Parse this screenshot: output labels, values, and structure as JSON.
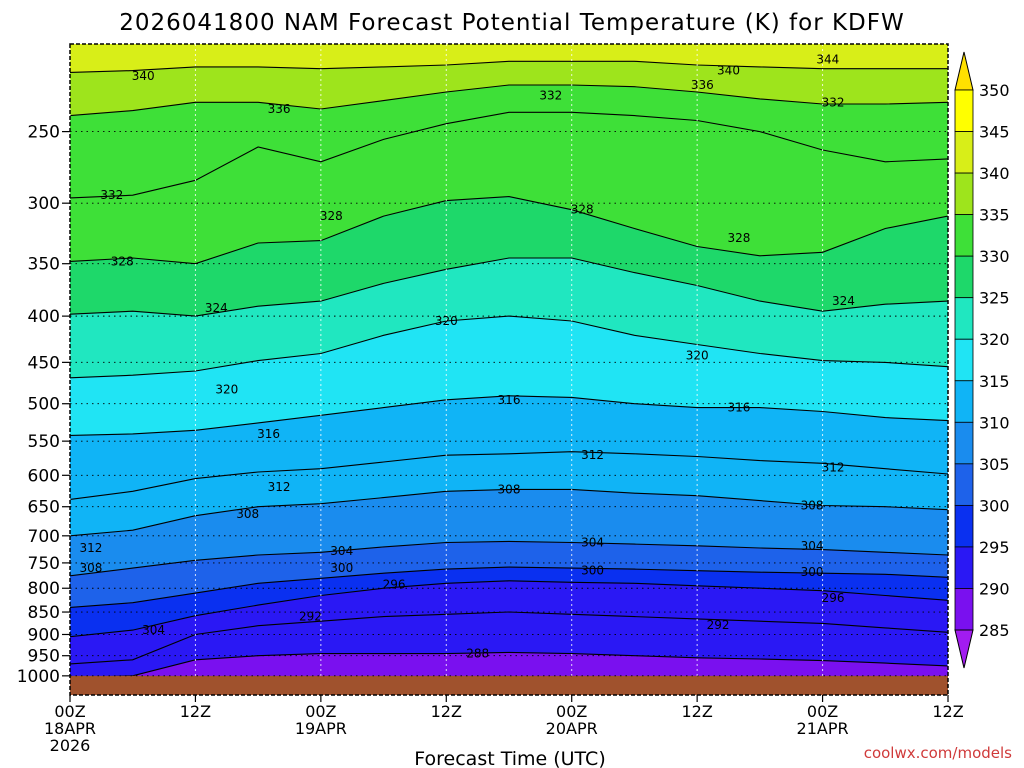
{
  "chart_data": {
    "type": "heatmap",
    "title": "2026041800 NAM Forecast Potential Temperature (K) for KDFW",
    "xlabel": "Forecast Time (UTC)",
    "ylabel": "",
    "credit": "coolwx.com/models",
    "y_axis": {
      "scale": "log",
      "inverted": true,
      "range": [
        1050,
        200
      ],
      "ticks": [
        250,
        300,
        350,
        400,
        450,
        500,
        550,
        600,
        650,
        700,
        750,
        800,
        850,
        900,
        950,
        1000
      ]
    },
    "x_axis": {
      "range_hours": [
        0,
        84
      ],
      "ticks": [
        {
          "h": 0,
          "lines": [
            "00Z",
            "18APR",
            "2026"
          ]
        },
        {
          "h": 12,
          "lines": [
            "12Z"
          ]
        },
        {
          "h": 24,
          "lines": [
            "00Z",
            "19APR"
          ]
        },
        {
          "h": 36,
          "lines": [
            "12Z"
          ]
        },
        {
          "h": 48,
          "lines": [
            "00Z",
            "20APR"
          ]
        },
        {
          "h": 60,
          "lines": [
            "12Z"
          ]
        },
        {
          "h": 72,
          "lines": [
            "00Z",
            "21APR"
          ]
        },
        {
          "h": 84,
          "lines": [
            "12Z"
          ]
        }
      ]
    },
    "colorbar": {
      "units": "K",
      "levels": [
        285,
        290,
        295,
        300,
        305,
        310,
        315,
        320,
        325,
        330,
        335,
        340,
        345,
        350
      ],
      "colors": [
        "#a21cf0",
        "#7a10ef",
        "#2a18f4",
        "#0a30f0",
        "#1e62ea",
        "#1a8cee",
        "#10b4f6",
        "#20e4f4",
        "#20e7c0",
        "#1ed86a",
        "#3ee038",
        "#9ee41c",
        "#d8ee18",
        "#ffff00",
        "#ffe000"
      ]
    },
    "grid": true,
    "surface_color": "#a0522d",
    "surface_pressure": 1000,
    "series": [
      {
        "theta": 340,
        "points": [
          [
            0,
            215
          ],
          [
            6,
            214
          ],
          [
            12,
            212
          ],
          [
            18,
            212
          ],
          [
            24,
            213
          ],
          [
            30,
            212
          ],
          [
            36,
            211
          ],
          [
            42,
            209
          ],
          [
            48,
            209
          ],
          [
            54,
            209
          ],
          [
            60,
            211
          ],
          [
            66,
            212
          ],
          [
            72,
            213
          ],
          [
            78,
            213
          ],
          [
            84,
            213
          ]
        ]
      },
      {
        "theta": 336,
        "points": [
          [
            0,
            240
          ],
          [
            6,
            237
          ],
          [
            12,
            232
          ],
          [
            18,
            232
          ],
          [
            24,
            236
          ],
          [
            30,
            231
          ],
          [
            36,
            226
          ],
          [
            42,
            222
          ],
          [
            48,
            222
          ],
          [
            54,
            223
          ],
          [
            60,
            226
          ],
          [
            66,
            230
          ],
          [
            72,
            233
          ],
          [
            78,
            233
          ],
          [
            84,
            232
          ]
        ]
      },
      {
        "theta": 332,
        "points": [
          [
            0,
            296
          ],
          [
            6,
            294
          ],
          [
            12,
            283
          ],
          [
            18,
            260
          ],
          [
            24,
            270
          ],
          [
            30,
            255
          ],
          [
            36,
            245
          ],
          [
            42,
            238
          ],
          [
            48,
            238
          ],
          [
            54,
            240
          ],
          [
            60,
            243
          ],
          [
            66,
            250
          ],
          [
            72,
            262
          ],
          [
            78,
            270
          ],
          [
            84,
            268
          ]
        ]
      },
      {
        "theta": 328,
        "points": [
          [
            0,
            348
          ],
          [
            6,
            345
          ],
          [
            12,
            350
          ],
          [
            18,
            332
          ],
          [
            24,
            330
          ],
          [
            30,
            310
          ],
          [
            36,
            298
          ],
          [
            42,
            295
          ],
          [
            48,
            305
          ],
          [
            54,
            320
          ],
          [
            60,
            335
          ],
          [
            66,
            343
          ],
          [
            72,
            340
          ],
          [
            78,
            320
          ],
          [
            84,
            310
          ]
        ]
      },
      {
        "theta": 324,
        "points": [
          [
            0,
            398
          ],
          [
            6,
            395
          ],
          [
            12,
            400
          ],
          [
            18,
            390
          ],
          [
            24,
            385
          ],
          [
            30,
            368
          ],
          [
            36,
            355
          ],
          [
            42,
            345
          ],
          [
            48,
            345
          ],
          [
            54,
            358
          ],
          [
            60,
            370
          ],
          [
            66,
            385
          ],
          [
            72,
            395
          ],
          [
            78,
            388
          ],
          [
            84,
            385
          ]
        ]
      },
      {
        "theta": 320,
        "points": [
          [
            0,
            468
          ],
          [
            6,
            465
          ],
          [
            12,
            460
          ],
          [
            18,
            448
          ],
          [
            24,
            440
          ],
          [
            30,
            420
          ],
          [
            36,
            405
          ],
          [
            42,
            400
          ],
          [
            48,
            405
          ],
          [
            54,
            420
          ],
          [
            60,
            430
          ],
          [
            66,
            440
          ],
          [
            72,
            448
          ],
          [
            78,
            450
          ],
          [
            84,
            455
          ]
        ]
      },
      {
        "theta": 316,
        "points": [
          [
            0,
            542
          ],
          [
            6,
            540
          ],
          [
            12,
            535
          ],
          [
            18,
            525
          ],
          [
            24,
            515
          ],
          [
            30,
            505
          ],
          [
            36,
            495
          ],
          [
            42,
            490
          ],
          [
            48,
            492
          ],
          [
            54,
            500
          ],
          [
            60,
            505
          ],
          [
            66,
            505
          ],
          [
            72,
            510
          ],
          [
            78,
            518
          ],
          [
            84,
            522
          ]
        ]
      },
      {
        "theta": 312,
        "points": [
          [
            0,
            638
          ],
          [
            6,
            625
          ],
          [
            12,
            605
          ],
          [
            18,
            595
          ],
          [
            24,
            590
          ],
          [
            30,
            580
          ],
          [
            36,
            570
          ],
          [
            42,
            568
          ],
          [
            48,
            565
          ],
          [
            54,
            568
          ],
          [
            60,
            572
          ],
          [
            66,
            578
          ],
          [
            72,
            582
          ],
          [
            78,
            590
          ],
          [
            84,
            598
          ]
        ]
      },
      {
        "theta": 308,
        "points": [
          [
            0,
            700
          ],
          [
            6,
            690
          ],
          [
            12,
            665
          ],
          [
            18,
            650
          ],
          [
            24,
            645
          ],
          [
            30,
            635
          ],
          [
            36,
            625
          ],
          [
            42,
            622
          ],
          [
            48,
            622
          ],
          [
            54,
            628
          ],
          [
            60,
            632
          ],
          [
            66,
            640
          ],
          [
            72,
            648
          ],
          [
            78,
            650
          ],
          [
            84,
            655
          ]
        ]
      },
      {
        "theta": 304,
        "points": [
          [
            0,
            775
          ],
          [
            6,
            760
          ],
          [
            12,
            745
          ],
          [
            18,
            735
          ],
          [
            24,
            730
          ],
          [
            30,
            720
          ],
          [
            36,
            712
          ],
          [
            42,
            710
          ],
          [
            48,
            712
          ],
          [
            54,
            715
          ],
          [
            60,
            718
          ],
          [
            66,
            722
          ],
          [
            72,
            725
          ],
          [
            78,
            730
          ],
          [
            84,
            735
          ]
        ]
      },
      {
        "theta": 300,
        "points": [
          [
            0,
            840
          ],
          [
            6,
            830
          ],
          [
            12,
            810
          ],
          [
            18,
            790
          ],
          [
            24,
            780
          ],
          [
            30,
            770
          ],
          [
            36,
            762
          ],
          [
            42,
            758
          ],
          [
            48,
            760
          ],
          [
            54,
            762
          ],
          [
            60,
            765
          ],
          [
            66,
            768
          ],
          [
            72,
            770
          ],
          [
            78,
            772
          ],
          [
            84,
            778
          ]
        ]
      },
      {
        "theta": 296,
        "points": [
          [
            0,
            905
          ],
          [
            6,
            890
          ],
          [
            12,
            858
          ],
          [
            18,
            835
          ],
          [
            24,
            815
          ],
          [
            30,
            800
          ],
          [
            36,
            790
          ],
          [
            42,
            785
          ],
          [
            48,
            788
          ],
          [
            54,
            790
          ],
          [
            60,
            795
          ],
          [
            66,
            800
          ],
          [
            72,
            805
          ],
          [
            78,
            815
          ],
          [
            84,
            825
          ]
        ]
      },
      {
        "theta": 292,
        "points": [
          [
            0,
            970
          ],
          [
            6,
            960
          ],
          [
            12,
            900
          ],
          [
            18,
            880
          ],
          [
            24,
            870
          ],
          [
            30,
            860
          ],
          [
            36,
            855
          ],
          [
            42,
            850
          ],
          [
            48,
            855
          ],
          [
            54,
            860
          ],
          [
            60,
            865
          ],
          [
            66,
            870
          ],
          [
            72,
            875
          ],
          [
            78,
            885
          ],
          [
            84,
            895
          ]
        ]
      },
      {
        "theta": 288,
        "points": [
          [
            0,
            1005
          ],
          [
            6,
            1000
          ],
          [
            12,
            960
          ],
          [
            18,
            950
          ],
          [
            24,
            945
          ],
          [
            30,
            945
          ],
          [
            36,
            945
          ],
          [
            42,
            942
          ],
          [
            48,
            945
          ],
          [
            54,
            950
          ],
          [
            60,
            955
          ],
          [
            66,
            958
          ],
          [
            72,
            962
          ],
          [
            78,
            968
          ],
          [
            84,
            975
          ]
        ]
      }
    ],
    "contour_labels": [
      {
        "text": "344",
        "h": 72.5,
        "p": 208
      },
      {
        "text": "340",
        "h": 7,
        "p": 217
      },
      {
        "text": "340",
        "h": 63,
        "p": 214
      },
      {
        "text": "336",
        "h": 20,
        "p": 236
      },
      {
        "text": "336",
        "h": 60.5,
        "p": 222
      },
      {
        "text": "332",
        "h": 46,
        "p": 228
      },
      {
        "text": "332",
        "h": 73,
        "p": 232
      },
      {
        "text": "332",
        "h": 4,
        "p": 294
      },
      {
        "text": "328",
        "h": 25,
        "p": 310
      },
      {
        "text": "328",
        "h": 49,
        "p": 305
      },
      {
        "text": "328",
        "h": 64,
        "p": 328
      },
      {
        "text": "328",
        "h": 5,
        "p": 348
      },
      {
        "text": "324",
        "h": 14,
        "p": 392
      },
      {
        "text": "324",
        "h": 74,
        "p": 385
      },
      {
        "text": "320",
        "h": 36,
        "p": 405
      },
      {
        "text": "320",
        "h": 60,
        "p": 442
      },
      {
        "text": "320",
        "h": 15,
        "p": 482
      },
      {
        "text": "316",
        "h": 42,
        "p": 495
      },
      {
        "text": "316",
        "h": 64,
        "p": 505
      },
      {
        "text": "316",
        "h": 19,
        "p": 540
      },
      {
        "text": "312",
        "h": 50,
        "p": 570
      },
      {
        "text": "312",
        "h": 73,
        "p": 588
      },
      {
        "text": "312",
        "h": 20,
        "p": 618
      },
      {
        "text": "308",
        "h": 42,
        "p": 622
      },
      {
        "text": "308",
        "h": 71,
        "p": 648
      },
      {
        "text": "308",
        "h": 17,
        "p": 662
      },
      {
        "text": "304",
        "h": 26,
        "p": 728
      },
      {
        "text": "304",
        "h": 50,
        "p": 712
      },
      {
        "text": "304",
        "h": 71,
        "p": 718
      },
      {
        "text": "312",
        "h": 2,
        "p": 722
      },
      {
        "text": "300",
        "h": 26,
        "p": 760
      },
      {
        "text": "300",
        "h": 50,
        "p": 765
      },
      {
        "text": "300",
        "h": 71,
        "p": 768
      },
      {
        "text": "308",
        "h": 2,
        "p": 760
      },
      {
        "text": "296",
        "h": 31,
        "p": 792
      },
      {
        "text": "296",
        "h": 73,
        "p": 820
      },
      {
        "text": "292",
        "h": 23,
        "p": 860
      },
      {
        "text": "292",
        "h": 62,
        "p": 878
      },
      {
        "text": "304",
        "h": 8,
        "p": 890
      },
      {
        "text": "288",
        "h": 39,
        "p": 945
      }
    ]
  }
}
